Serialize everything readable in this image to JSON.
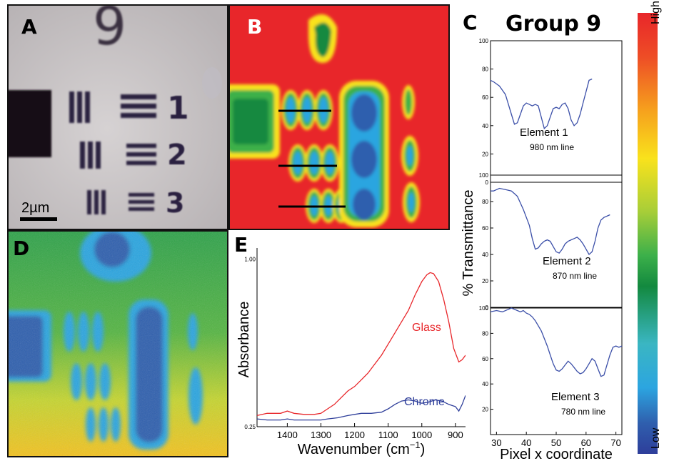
{
  "panels": {
    "a": {
      "letter": "A",
      "digits": [
        "9",
        "1",
        "2",
        "3"
      ],
      "scale_bar": "2µm"
    },
    "b": {
      "letter": "B"
    },
    "c": {
      "letter": "C",
      "title": "Group 9"
    },
    "d": {
      "letter": "D"
    },
    "e": {
      "letter": "E"
    }
  },
  "colorbar": {
    "high": "High",
    "low": "Low",
    "colors": [
      "#e8262a",
      "#f05a24",
      "#f6a01d",
      "#f9e21c",
      "#b5d334",
      "#3cb04a",
      "#13893f",
      "#3ab6c2",
      "#2ca5e0",
      "#2f5fae",
      "#2e3e9a"
    ]
  },
  "chart_data": [
    {
      "type": "line",
      "panel": "C",
      "title": "Group 9",
      "ylabel": "% Transmittance",
      "xlabel": "Pixel x coordinate",
      "xlim": [
        28,
        72
      ],
      "xticks": [
        "30",
        "40",
        "50",
        "60",
        "70"
      ],
      "subplots": [
        {
          "label": "Element 1",
          "sublabel": "980 nm line",
          "ylim": [
            0,
            100
          ],
          "yticks": [
            "0",
            "20",
            "40",
            "60",
            "80",
            "100"
          ],
          "x": [
            28,
            29,
            31,
            33,
            34,
            35,
            36,
            37,
            38,
            39,
            40,
            41,
            42,
            43,
            44,
            45,
            46,
            47,
            48,
            49,
            50,
            51,
            52,
            53,
            54,
            55,
            56,
            57,
            58,
            59,
            60,
            61,
            62
          ],
          "y": [
            72,
            71,
            68,
            62,
            55,
            48,
            41,
            42,
            48,
            54,
            56,
            55,
            54,
            55,
            54,
            46,
            38,
            40,
            46,
            52,
            53,
            52,
            55,
            56,
            52,
            44,
            40,
            42,
            48,
            56,
            64,
            72,
            73
          ]
        },
        {
          "label": "Element 2",
          "sublabel": "870 nm line",
          "ylim": [
            0,
            100
          ],
          "yticks": [
            "0",
            "20",
            "40",
            "60",
            "80",
            "100"
          ],
          "x": [
            28,
            29,
            31,
            33,
            35,
            36,
            37,
            38,
            39,
            40,
            41,
            42,
            43,
            44,
            45,
            46,
            47,
            48,
            49,
            50,
            51,
            52,
            53,
            54,
            55,
            56,
            57,
            58,
            59,
            60,
            61,
            62,
            63,
            64,
            65,
            66,
            67,
            68
          ],
          "y": [
            88,
            88,
            90,
            89,
            88,
            86,
            84,
            79,
            74,
            68,
            62,
            52,
            44,
            45,
            48,
            50,
            51,
            50,
            46,
            42,
            41,
            44,
            48,
            50,
            51,
            52,
            53,
            51,
            48,
            44,
            40,
            42,
            50,
            60,
            66,
            68,
            69,
            70
          ]
        },
        {
          "label": "Element 3",
          "sublabel": "780 nm line",
          "ylim": [
            0,
            100
          ],
          "yticks": [
            "20",
            "40",
            "60",
            "80",
            "100"
          ],
          "x": [
            28,
            30,
            32,
            34,
            35,
            36,
            37,
            38,
            39,
            40,
            41,
            42,
            43,
            44,
            45,
            46,
            47,
            48,
            49,
            50,
            51,
            52,
            53,
            54,
            55,
            56,
            57,
            58,
            59,
            60,
            61,
            62,
            63,
            64,
            65,
            66,
            67,
            68,
            69,
            70,
            71,
            72
          ],
          "y": [
            97,
            98,
            97,
            99,
            100,
            99,
            98,
            97,
            98,
            96,
            95,
            93,
            90,
            86,
            82,
            76,
            70,
            63,
            56,
            51,
            50,
            52,
            55,
            58,
            56,
            53,
            50,
            48,
            49,
            52,
            56,
            60,
            58,
            52,
            46,
            47,
            55,
            63,
            69,
            70,
            69,
            70
          ]
        }
      ]
    },
    {
      "type": "line",
      "panel": "E",
      "xlabel": "Wavenumber (cm-1)",
      "ylabel": "Absorbance",
      "xlim": [
        1490,
        870
      ],
      "ylim": [
        0.25,
        1.05
      ],
      "xticks": [
        "1400",
        "1300",
        "1200",
        "1100",
        "1000",
        "900"
      ],
      "yticks": [
        "0.25",
        "1.00"
      ],
      "series": [
        {
          "name": "Glass",
          "color": "#e8262a",
          "x": [
            1490,
            1460,
            1420,
            1400,
            1380,
            1350,
            1320,
            1300,
            1280,
            1260,
            1240,
            1220,
            1200,
            1180,
            1160,
            1140,
            1120,
            1100,
            1080,
            1060,
            1040,
            1020,
            1000,
            985,
            975,
            965,
            950,
            935,
            920,
            905,
            890,
            880,
            870
          ],
          "y": [
            0.3,
            0.31,
            0.31,
            0.32,
            0.31,
            0.305,
            0.305,
            0.31,
            0.33,
            0.35,
            0.38,
            0.41,
            0.43,
            0.46,
            0.49,
            0.53,
            0.57,
            0.62,
            0.67,
            0.72,
            0.77,
            0.84,
            0.9,
            0.93,
            0.94,
            0.935,
            0.9,
            0.82,
            0.72,
            0.6,
            0.54,
            0.55,
            0.57
          ]
        },
        {
          "name": "Chrome",
          "color": "#2e3e9a",
          "x": [
            1490,
            1460,
            1420,
            1400,
            1380,
            1350,
            1320,
            1300,
            1280,
            1250,
            1220,
            1200,
            1180,
            1150,
            1120,
            1100,
            1080,
            1060,
            1040,
            1020,
            1000,
            980,
            960,
            940,
            920,
            900,
            890,
            880,
            870
          ],
          "y": [
            0.285,
            0.28,
            0.28,
            0.285,
            0.28,
            0.28,
            0.28,
            0.28,
            0.285,
            0.29,
            0.3,
            0.305,
            0.31,
            0.31,
            0.315,
            0.33,
            0.35,
            0.365,
            0.37,
            0.365,
            0.355,
            0.36,
            0.37,
            0.365,
            0.35,
            0.34,
            0.32,
            0.35,
            0.39
          ]
        }
      ]
    }
  ]
}
